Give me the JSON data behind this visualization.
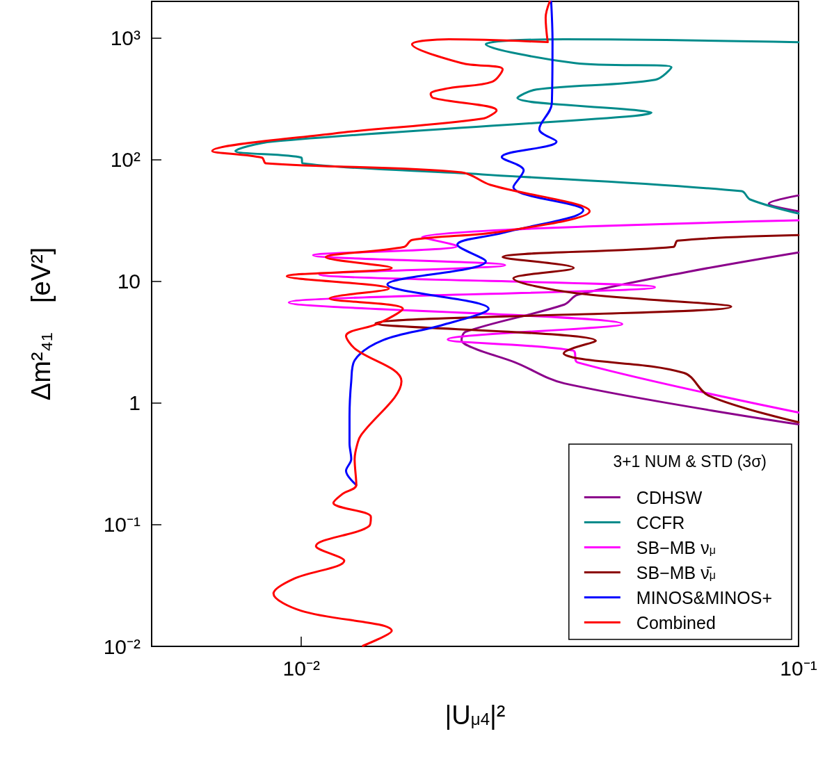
{
  "chart_data": {
    "type": "line",
    "xlabel": "|U$_{μ4}$|²",
    "ylabel": "Δm²₄₁    [eV²]",
    "legend_title": "3+1 NUM & STD (3σ)",
    "log": "xy",
    "grid": false,
    "legend": "bottom right",
    "marker": "none",
    "line_style": "solid",
    "xlim": [
      0.005,
      0.1
    ],
    "ylim": [
      0.01,
      2000
    ],
    "xticks": [
      {
        "value": 0.01,
        "label": "10⁻²"
      },
      {
        "value": 0.1,
        "label": "10⁻¹"
      }
    ],
    "yticks": [
      {
        "value": 0.01,
        "label": "10⁻²"
      },
      {
        "value": 0.1,
        "label": "10⁻¹"
      },
      1,
      10,
      {
        "value": 100,
        "label": "10²"
      },
      {
        "value": 1000,
        "label": "10³"
      }
    ],
    "series": [
      {
        "name": "CDHSW",
        "color": "#8b008b",
        "x": [
          0.1,
          0.0871,
          0.1,
          null,
          0.1,
          0.06,
          0.0359,
          0.0338,
          0.0214,
          0.021,
          0.0223,
          0.0269,
          0.0338,
          0.1
        ],
        "values": [
          50.9,
          43.5,
          37.7,
          null,
          17.3,
          12.0,
          7.74,
          6.44,
          3.85,
          3.29,
          2.81,
          2.16,
          1.45,
          0.668
        ]
      },
      {
        "name": "CCFR",
        "color": "#008b8b",
        "x": [
          0.1,
          0.0338,
          0.0235,
          0.0355,
          0.0555,
          0.0515,
          0.0297,
          0.0272,
          0.0477,
          0.0506,
          0.0451,
          0.00874,
          0.00737,
          0.01,
          0.01006,
          0.0231,
          0.0768,
          0.0799,
          0.1
        ],
        "values": [
          925,
          975,
          888,
          622,
          575,
          454,
          378,
          322,
          254,
          244,
          226,
          141,
          118,
          104,
          93.3,
          75.7,
          55.1,
          47.1,
          36.1
        ]
      },
      {
        "name": "SB−MB ν$_{μ}$",
        "color": "#ff00ff",
        "x": [
          0.1,
          0.0175,
          0.0206,
          0.01056,
          0.0257,
          0.01087,
          0.0514,
          0.00944,
          0.0442,
          0.0197,
          0.0352,
          0.0359,
          0.1
        ],
        "values": [
          31.7,
          23.1,
          19.5,
          16.4,
          13.6,
          11.4,
          8.95,
          6.7,
          4.46,
          3.33,
          2.7,
          2.16,
          0.836
        ]
      },
      {
        "name": "SB−MB ν̄$_{μ}$",
        "color": "#8b0000",
        "x": [
          0.1,
          0.0571,
          0.056,
          0.0254,
          0.0353,
          0.0267,
          0.0352,
          0.0732,
          0.0141,
          0.0391,
          0.0337,
          0.0359,
          0.0588,
          0.066,
          0.1
        ],
        "values": [
          24.0,
          21.6,
          19.2,
          15.8,
          12.9,
          10.6,
          8.05,
          6.19,
          4.51,
          3.24,
          2.56,
          2.33,
          1.77,
          1.15,
          0.695
        ]
      },
      {
        "name": "MINOS&MINOS+",
        "color": "#0000ff",
        "x": [
          0.0318,
          0.032,
          0.0319,
          0.0301,
          0.0326,
          0.0253,
          0.028,
          0.0267,
          0.0369,
          0.0254,
          0.0206,
          0.0235,
          0.0149,
          0.0238,
          0.0191,
          0.0146,
          0.0128,
          0.0126,
          0.0125,
          0.0125,
          0.0126,
          0.0123,
          0.0129
        ],
        "values": [
          2000,
          950,
          290,
          178,
          141,
          105,
          81.8,
          59.7,
          38.6,
          25.0,
          20.0,
          14.6,
          9.44,
          5.96,
          4.34,
          3.29,
          2.24,
          1.51,
          0.773,
          0.468,
          0.346,
          0.277,
          0.212
        ]
      },
      {
        "name": "Combined",
        "color": "#ff0000",
        "x": [
          0.0316,
          0.031,
          0.0313,
          0.0198,
          0.0167,
          0.021,
          0.0254,
          0.0242,
          0.0198,
          0.0182,
          0.0184,
          0.0247,
          0.0231,
          0.0116,
          0.00662,
          0.00833,
          0.00849,
          0.021,
          0.024,
          0.038,
          0.0254,
          0.0167,
          0.0161,
          0.0112,
          0.0152,
          0.00935,
          0.015,
          0.0114,
          0.016,
          0.0143,
          0.0123,
          0.0128,
          0.0159,
          0.0132,
          0.013,
          0.0128,
          0.0129,
          0.0121,
          0.0116,
          0.0138,
          0.0137,
          0.0107,
          0.0122,
          0.00965,
          0.00879,
          0.01,
          0.0152,
          0.0133
        ],
        "values": [
          2000,
          1470,
          925,
          975,
          888,
          622,
          553,
          437,
          387,
          348,
          322,
          254,
          217,
          164,
          118,
          104,
          93.3,
          78.7,
          62.1,
          37.7,
          25.7,
          21.9,
          19.2,
          15.8,
          12.9,
          11.0,
          8.73,
          7.25,
          5.96,
          4.51,
          3.56,
          2.81,
          1.51,
          0.548,
          0.481,
          0.346,
          0.212,
          0.179,
          0.151,
          0.116,
          0.0977,
          0.0667,
          0.0506,
          0.0359,
          0.0272,
          0.0196,
          0.0134,
          0.0101
        ]
      }
    ]
  }
}
